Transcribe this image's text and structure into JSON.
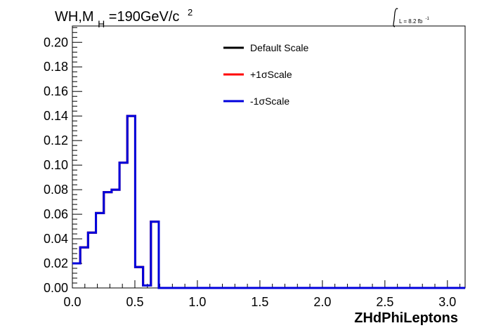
{
  "header": {
    "title_main": "WH,M",
    "title_sub": "H",
    "title_mid": "=190GeV/c",
    "title_sup": "2",
    "lumi_main": "L = 8.2 fb",
    "lumi_sup": "-1"
  },
  "chart_data": {
    "type": "line",
    "title": "WH,M H =190GeV/c 2",
    "xlabel": "ZHdPhiLeptons",
    "ylabel": "",
    "xlim": [
      0.0,
      3.1416
    ],
    "ylim": [
      0.0,
      0.2133
    ],
    "x_ticks": [
      "0.0",
      "0.5",
      "1.0",
      "1.5",
      "2.0",
      "2.5",
      "3.0"
    ],
    "y_ticks": [
      "0.00",
      "0.02",
      "0.04",
      "0.06",
      "0.08",
      "0.10",
      "0.12",
      "0.14",
      "0.16",
      "0.18",
      "0.20"
    ],
    "legend_position": "top-center",
    "grid": false,
    "bin_edges": [
      0.0,
      0.0628,
      0.1257,
      0.1885,
      0.2513,
      0.3142,
      0.377,
      0.4398,
      0.5027,
      0.5655,
      0.6283,
      0.6912,
      0.754,
      0.8168,
      0.8796,
      0.9425,
      1.0053,
      1.0681,
      1.131,
      1.1938,
      1.2566,
      1.3195,
      1.3823,
      1.4451,
      1.508,
      1.5708,
      1.6336,
      1.6965,
      1.7593,
      1.8221,
      1.885,
      1.9478,
      2.0106,
      2.0735,
      2.1363,
      2.1991,
      2.2619,
      2.3248,
      2.3876,
      2.4504,
      2.5133,
      2.5761,
      2.6389,
      2.7018,
      2.7646,
      2.8274,
      2.8903,
      2.9531,
      3.0159,
      3.0788,
      3.1416
    ],
    "series": [
      {
        "name": "Default Scale",
        "color": "#000000",
        "values": [
          0.02,
          0.033,
          0.045,
          0.061,
          0.078,
          0.08,
          0.102,
          0.14,
          0.017,
          0.002,
          0.054,
          0,
          0,
          0,
          0,
          0,
          0,
          0,
          0,
          0,
          0,
          0,
          0,
          0,
          0,
          0,
          0,
          0,
          0,
          0,
          0,
          0,
          0,
          0,
          0,
          0,
          0,
          0,
          0,
          0,
          0,
          0,
          0,
          0,
          0,
          0,
          0,
          0,
          0,
          0
        ]
      },
      {
        "name": "+1σScale",
        "color": "#ff0000",
        "values": [
          0.02,
          0.033,
          0.045,
          0.061,
          0.078,
          0.08,
          0.102,
          0.14,
          0.017,
          0.002,
          0.054,
          0,
          0,
          0,
          0,
          0,
          0,
          0,
          0,
          0,
          0,
          0,
          0,
          0,
          0,
          0,
          0,
          0,
          0,
          0,
          0,
          0,
          0,
          0,
          0,
          0,
          0,
          0,
          0,
          0,
          0,
          0,
          0,
          0,
          0,
          0,
          0,
          0,
          0,
          0
        ]
      },
      {
        "name": "-1σScale",
        "color": "#0000dd",
        "values": [
          0.02,
          0.033,
          0.045,
          0.061,
          0.078,
          0.08,
          0.102,
          0.14,
          0.017,
          0.002,
          0.054,
          0,
          0,
          0,
          0,
          0,
          0,
          0,
          0,
          0,
          0,
          0,
          0,
          0,
          0,
          0,
          0,
          0,
          0,
          0,
          0,
          0,
          0,
          0,
          0,
          0,
          0,
          0,
          0,
          0,
          0,
          0,
          0,
          0,
          0,
          0,
          0,
          0,
          0,
          0
        ]
      }
    ]
  }
}
